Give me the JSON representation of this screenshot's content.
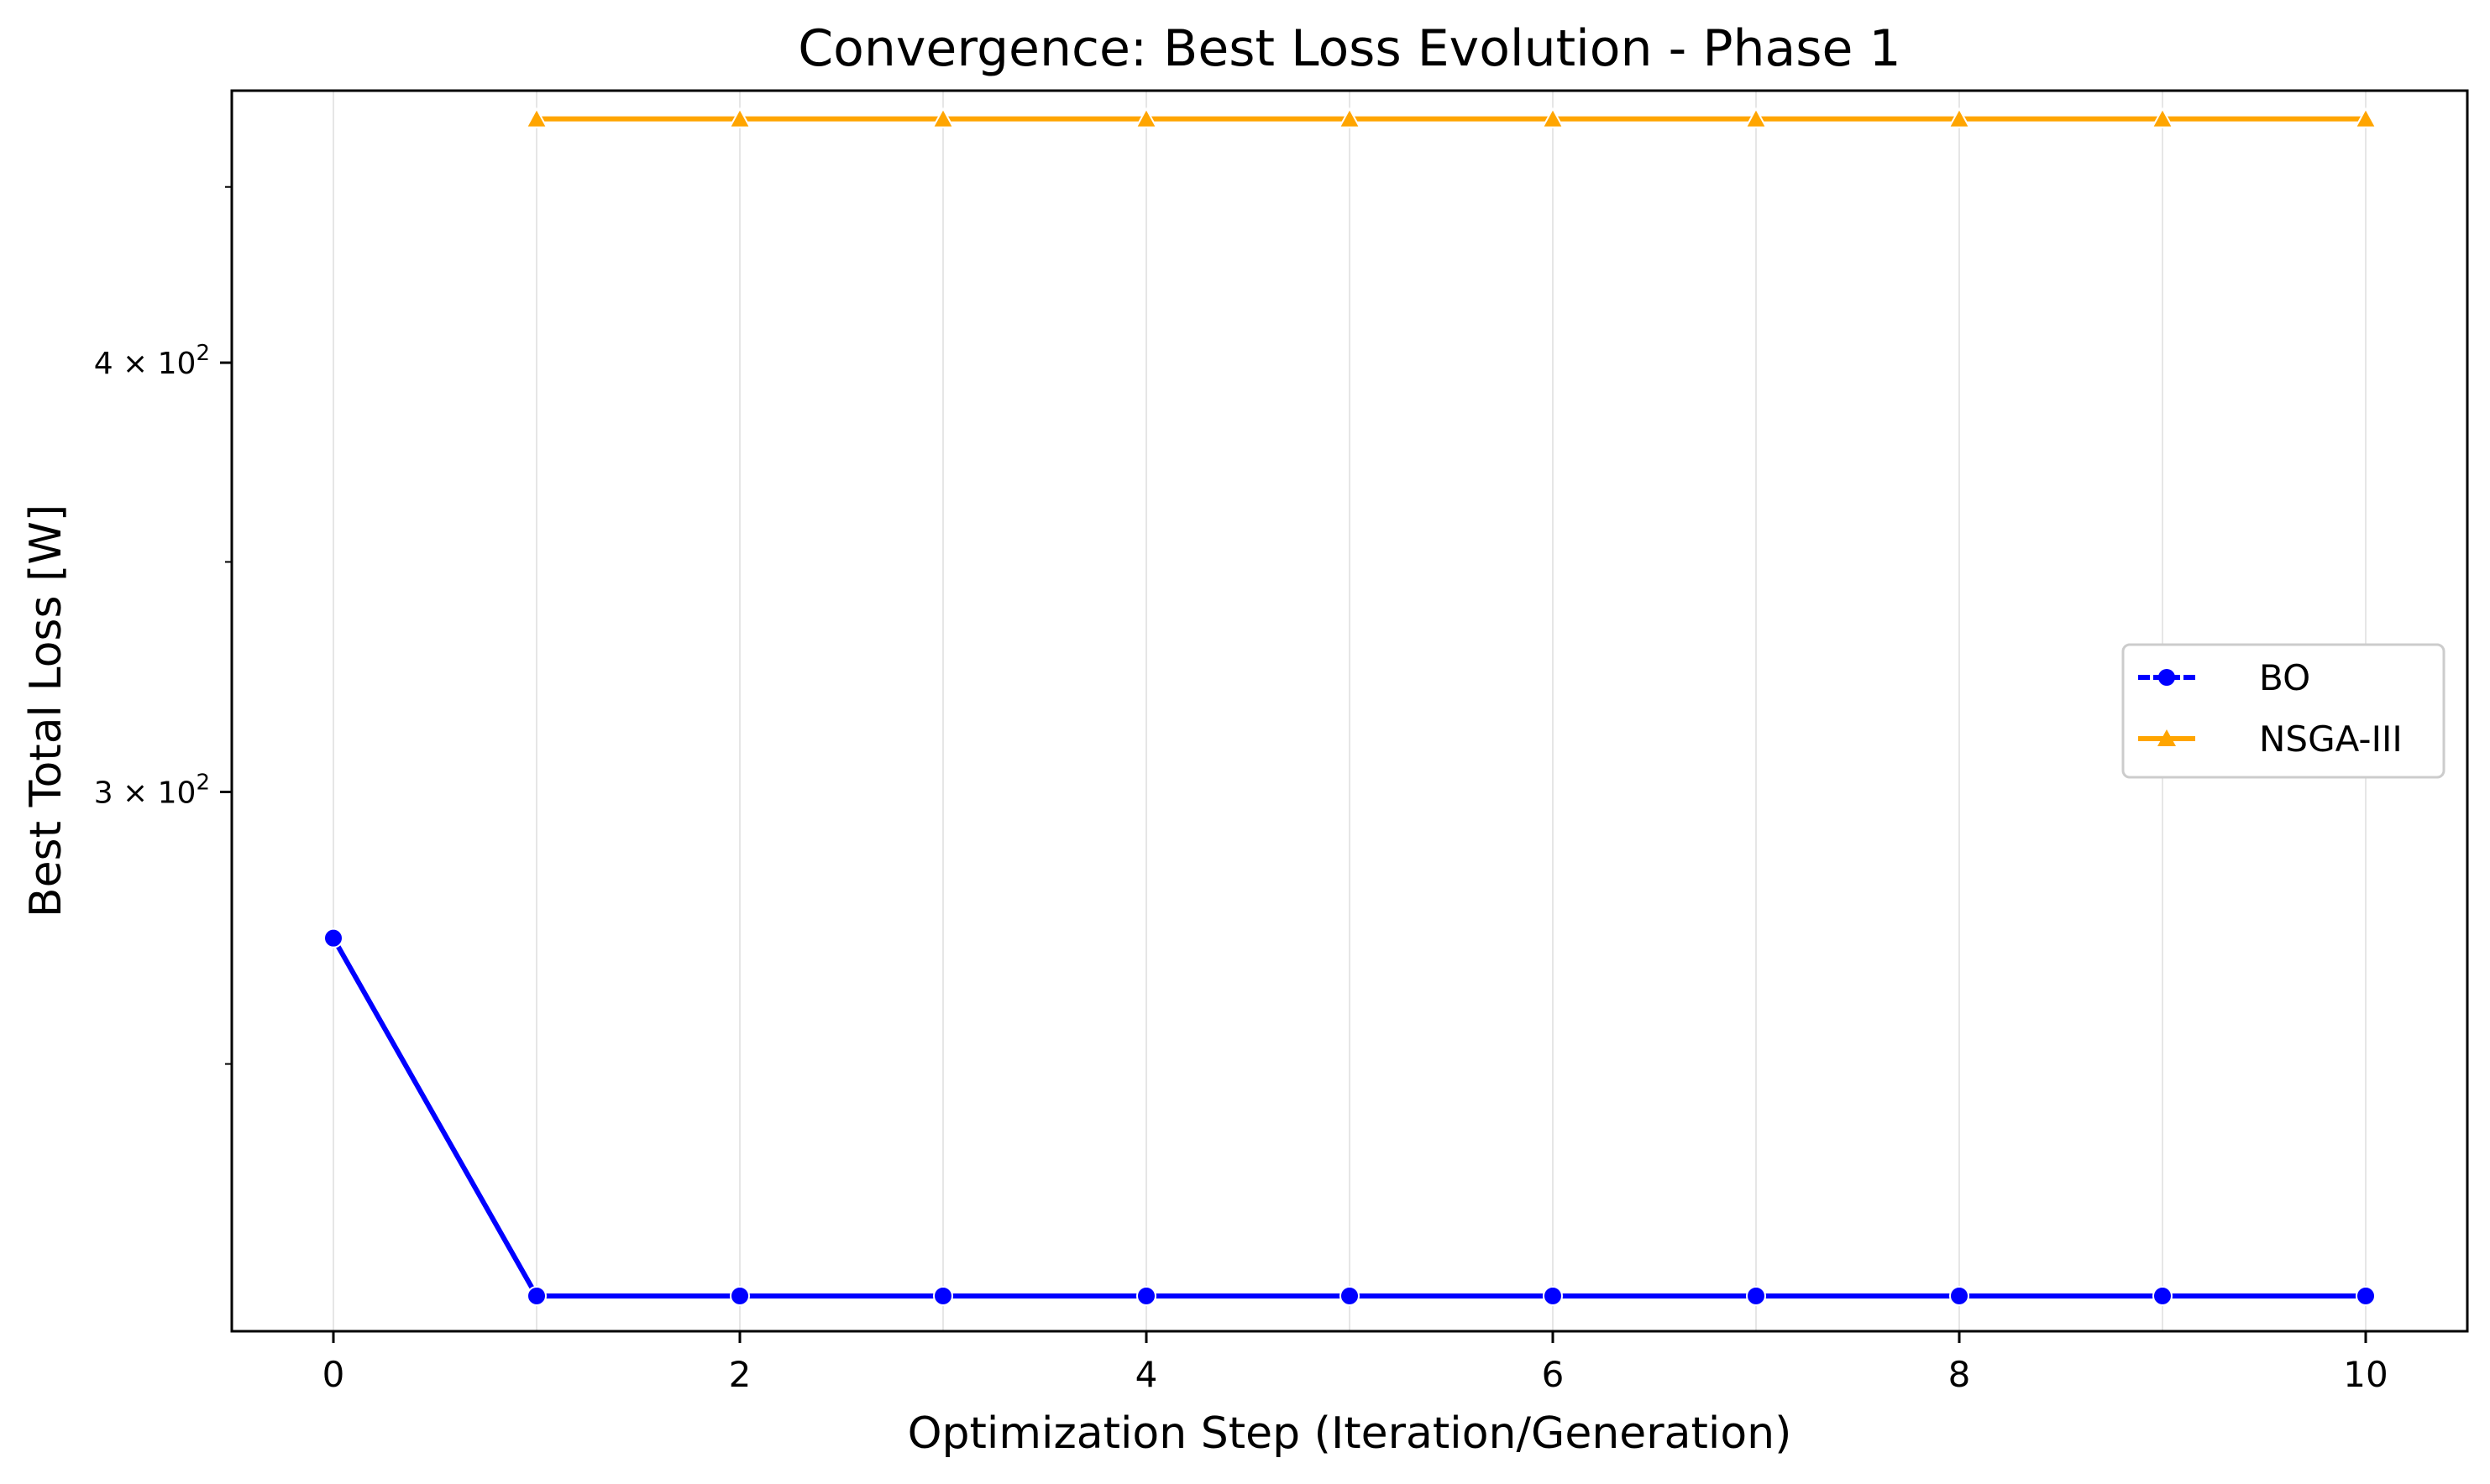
{
  "chart_data": {
    "type": "line",
    "title": "Convergence: Best Loss Evolution - Phase 1",
    "xlabel": "Optimization Step (Iteration/Generation)",
    "ylabel": "Best Total Loss [W]",
    "xlim": [
      -0.5,
      10.5
    ],
    "ylim": [
      209,
      480
    ],
    "yscale": "log",
    "grid": "vertical",
    "legend": "center-right",
    "xticks": [
      {
        "value": 0,
        "label": "0"
      },
      {
        "value": 2,
        "label": "2"
      },
      {
        "value": 4,
        "label": "4"
      },
      {
        "value": 6,
        "label": "6"
      },
      {
        "value": 8,
        "label": "8"
      },
      {
        "value": 10,
        "label": "10"
      }
    ],
    "yticks": [
      {
        "value": 300,
        "base": "3 × 10",
        "exp": "2"
      },
      {
        "value": 400,
        "base": "4 × 10",
        "exp": "2"
      }
    ],
    "series": [
      {
        "name": "BO",
        "color": "#0000ff",
        "marker": "circle",
        "x": [
          0,
          1,
          2,
          3,
          4,
          5,
          6,
          7,
          8,
          9,
          10
        ],
        "y": [
          272,
          214,
          214,
          214,
          214,
          214,
          214,
          214,
          214,
          214,
          214
        ]
      },
      {
        "name": "NSGA-III",
        "color": "#ffa500",
        "marker": "triangle",
        "x": [
          1,
          2,
          3,
          4,
          5,
          6,
          7,
          8,
          9,
          10
        ],
        "y": [
          471,
          471,
          471,
          471,
          471,
          471,
          471,
          471,
          471,
          471
        ]
      }
    ]
  }
}
